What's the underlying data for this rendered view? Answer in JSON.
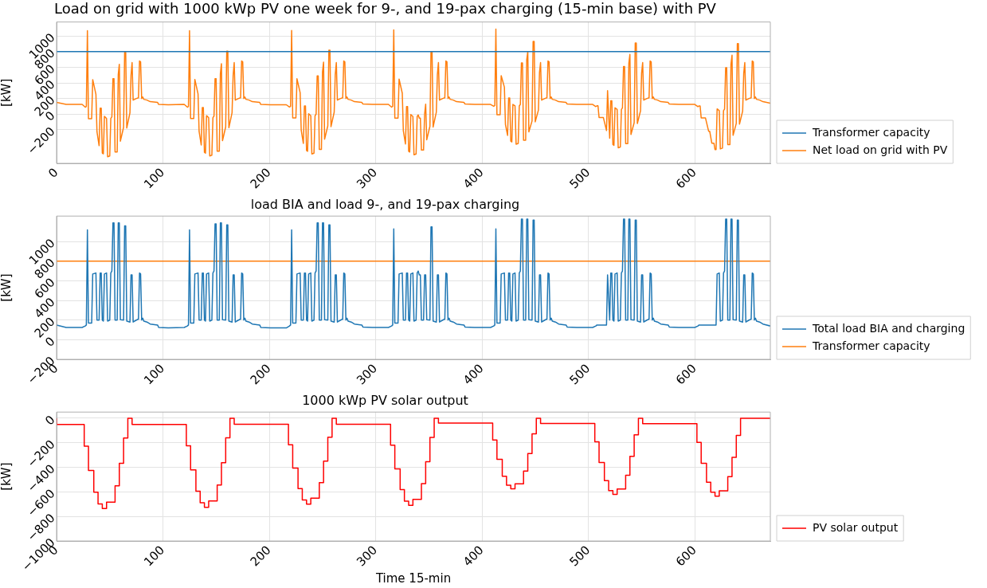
{
  "chart_data": [
    {
      "type": "line",
      "title": "Load on grid with 1000 kWp PV one week for 9-, and 19-pax charging (15-min base) with PV",
      "ylabel": "[kW]",
      "xlim": [
        0,
        671
      ],
      "xticks": [
        0,
        100,
        200,
        300,
        400,
        500,
        600
      ],
      "ylim": [
        -630,
        1180
      ],
      "yticks": [
        {
          "value": -200,
          "label": "−200"
        },
        0,
        200,
        400,
        600,
        800,
        1000
      ],
      "grid": true,
      "legend": "bottom right",
      "series": [
        {
          "name": "Transformer capacity",
          "color": "#1f77b4",
          "x": [
            0,
            671
          ],
          "values": [
            800,
            800
          ]
        },
        {
          "name": "Net load on grid with PV",
          "color": "#ff7f0e",
          "x": [
            0,
            9,
            24,
            27,
            28,
            29,
            30,
            33,
            34,
            37,
            38,
            40,
            41,
            42,
            43,
            44,
            45,
            47,
            48,
            50,
            51,
            52,
            53,
            54,
            55,
            57,
            58,
            59,
            60,
            63,
            64,
            65,
            66,
            69,
            70,
            71,
            72,
            75,
            77,
            78,
            79,
            80,
            81,
            82,
            85,
            88,
            95,
            96,
            105,
            120,
            123,
            124,
            125,
            126,
            129,
            130,
            133,
            134,
            136,
            137,
            138,
            139,
            140,
            141,
            143,
            144,
            146,
            147,
            148,
            149,
            150,
            151,
            153,
            154,
            155,
            156,
            159,
            160,
            161,
            162,
            165,
            166,
            167,
            168,
            171,
            173,
            174,
            175,
            176,
            177,
            178,
            181,
            184,
            191,
            192,
            201,
            216,
            219,
            220,
            221,
            222,
            225,
            226,
            229,
            230,
            232,
            233,
            234,
            235,
            236,
            237,
            239,
            240,
            242,
            243,
            244,
            245,
            246,
            247,
            249,
            250,
            251,
            252,
            255,
            256,
            257,
            258,
            261,
            262,
            263,
            264,
            267,
            269,
            270,
            271,
            272,
            273,
            274,
            277,
            280,
            287,
            288,
            297,
            312,
            315,
            316,
            317,
            318,
            321,
            322,
            325,
            326,
            328,
            329,
            330,
            331,
            332,
            333,
            335,
            336,
            338,
            339,
            340,
            341,
            342,
            343,
            345,
            346,
            347,
            348,
            351,
            352,
            353,
            354,
            357,
            358,
            359,
            360,
            363,
            365,
            366,
            367,
            368,
            369,
            370,
            373,
            376,
            383,
            384,
            393,
            408,
            411,
            412,
            413,
            414,
            417,
            418,
            421,
            422,
            424,
            425,
            426,
            427,
            428,
            429,
            431,
            432,
            434,
            435,
            436,
            437,
            438,
            439,
            441,
            442,
            443,
            444,
            447,
            448,
            449,
            450,
            453,
            454,
            455,
            456,
            459,
            461,
            462,
            463,
            464,
            465,
            466,
            469,
            472,
            479,
            480,
            489,
            504,
            507,
            508,
            509,
            510,
            513,
            514,
            517,
            518,
            520,
            521,
            522,
            523,
            524,
            525,
            527,
            528,
            530,
            531,
            532,
            533,
            534,
            535,
            537,
            538,
            539,
            540,
            543,
            544,
            545,
            546,
            549,
            550,
            551,
            552,
            555,
            557,
            558,
            559,
            560,
            561,
            562,
            565,
            568,
            575,
            576,
            585,
            600,
            603,
            604,
            605,
            606,
            609,
            610,
            613,
            614,
            616,
            617,
            618,
            619,
            620,
            621,
            623,
            624,
            626,
            627,
            628,
            629,
            630,
            631,
            633,
            634,
            635,
            636,
            639,
            640,
            641,
            642,
            645,
            646,
            647,
            648,
            651,
            653,
            654,
            655,
            656,
            657,
            658,
            661,
            664,
            671
          ],
          "values": [
            150,
            125,
            125,
            89,
            99,
            1069,
            -58,
            -58,
            442,
            254,
            -226,
            -403,
            77,
            77,
            -498,
            -508,
            -28,
            -55,
            -545,
            -535,
            -55,
            -35,
            455,
            455,
            -484,
            -484,
            506,
            639,
            -346,
            -168,
            792,
            792,
            -178,
            18,
            498,
            660,
            180,
            200,
            210,
            680,
            670,
            200,
            220,
            190,
            180,
            160,
            150,
            125,
            120,
            125,
            89,
            99,
            1069,
            -55,
            -55,
            445,
            259,
            -221,
            -395,
            85,
            85,
            -489,
            -499,
            -19,
            -45,
            -535,
            -525,
            -45,
            -25,
            455,
            455,
            -474,
            -474,
            516,
            646,
            -339,
            -163,
            807,
            807,
            -173,
            20,
            500,
            660,
            180,
            200,
            210,
            680,
            670,
            200,
            220,
            190,
            180,
            160,
            150,
            125,
            120,
            120,
            91,
            101,
            1071,
            -47,
            -47,
            453,
            274,
            -206,
            -374,
            106,
            106,
            -465,
            -475,
            5,
            -20,
            -510,
            -500,
            -20,
            0,
            490,
            490,
            -451,
            -451,
            539,
            665,
            -320,
            -150,
            820,
            820,
            -160,
            26,
            506,
            660,
            180,
            200,
            210,
            680,
            670,
            200,
            220,
            190,
            180,
            160,
            150,
            130,
            125,
            125,
            90,
            100,
            1080,
            -50,
            -50,
            450,
            268,
            -212,
            -382,
            98,
            98,
            -475,
            -485,
            -5,
            -30,
            -520,
            -510,
            -30,
            -10,
            -50,
            -50,
            -460,
            -460,
            0,
            127,
            -328,
            -155,
            795,
            795,
            -165,
            24,
            504,
            660,
            180,
            200,
            210,
            680,
            670,
            200,
            220,
            190,
            180,
            160,
            150,
            130,
            125,
            125,
            100,
            110,
            1090,
            -8,
            -8,
            492,
            346,
            -134,
            -272,
            208,
            208,
            -346,
            -356,
            124,
            105,
            -385,
            -375,
            105,
            125,
            655,
            655,
            -335,
            -335,
            695,
            799,
            -226,
            -88,
            932,
            932,
            -98,
            53,
            533,
            660,
            180,
            200,
            210,
            680,
            670,
            200,
            220,
            190,
            180,
            160,
            150,
            130,
            125,
            125,
            97,
            107,
            107,
            -42,
            -42,
            -42,
            -210,
            300,
            -308,
            172,
            172,
            -389,
            -399,
            81,
            60,
            -430,
            -420,
            60,
            80,
            610,
            610,
            -377,
            -377,
            653,
            765,
            -260,
            -110,
            910,
            910,
            -120,
            44,
            524,
            660,
            180,
            200,
            210,
            680,
            670,
            200,
            220,
            190,
            180,
            160,
            150,
            130,
            125,
            125,
            96,
            106,
            106,
            -47,
            -47,
            -47,
            -218,
            -218,
            -371,
            -371,
            -371,
            -453,
            -453,
            67,
            45,
            -445,
            -435,
            45,
            65,
            595,
            595,
            -391,
            -391,
            639,
            754,
            -271,
            -118,
            902,
            902,
            -128,
            40,
            520,
            660,
            180,
            200,
            210,
            680,
            670,
            200,
            220,
            190,
            180,
            160,
            140
          ]
        }
      ]
    },
    {
      "type": "line",
      "title": "load BIA and load 9-, and 19-pax charging",
      "ylabel": "[kW]",
      "xlim": [
        0,
        671
      ],
      "xticks": [
        0,
        100,
        200,
        300,
        400,
        500,
        600
      ],
      "ylim": [
        -200,
        1260
      ],
      "yticks": [
        {
          "value": -200,
          "label": "−200"
        },
        0,
        200,
        400,
        600,
        800,
        1000
      ],
      "grid": true,
      "legend": "bottom right",
      "series": [
        {
          "name": "Total load BIA and charging",
          "color": "#1f77b4",
          "x": [
            0,
            9,
            24,
            27,
            28,
            29,
            30,
            33,
            34,
            37,
            38,
            40,
            41,
            42,
            43,
            44,
            45,
            47,
            48,
            50,
            51,
            52,
            53,
            54,
            55,
            57,
            58,
            59,
            60,
            63,
            64,
            65,
            66,
            69,
            70,
            71,
            72,
            75,
            77,
            78,
            79,
            80,
            81,
            82,
            85,
            88,
            95,
            96,
            105,
            120,
            123,
            124,
            125,
            126,
            129,
            130,
            133,
            134,
            136,
            137,
            138,
            139,
            140,
            141,
            143,
            144,
            146,
            147,
            148,
            149,
            150,
            151,
            153,
            154,
            155,
            156,
            159,
            160,
            161,
            162,
            165,
            166,
            167,
            168,
            171,
            173,
            174,
            175,
            176,
            177,
            178,
            181,
            184,
            191,
            192,
            201,
            216,
            219,
            220,
            221,
            222,
            225,
            226,
            229,
            230,
            232,
            233,
            234,
            235,
            236,
            237,
            239,
            240,
            242,
            243,
            244,
            245,
            246,
            247,
            249,
            250,
            251,
            252,
            255,
            256,
            257,
            258,
            261,
            262,
            263,
            264,
            267,
            269,
            270,
            271,
            272,
            273,
            274,
            277,
            280,
            287,
            288,
            297,
            312,
            315,
            316,
            317,
            318,
            321,
            322,
            325,
            326,
            328,
            329,
            330,
            331,
            332,
            333,
            335,
            336,
            338,
            339,
            340,
            341,
            342,
            343,
            345,
            346,
            347,
            348,
            351,
            352,
            353,
            354,
            357,
            358,
            359,
            360,
            363,
            365,
            366,
            367,
            368,
            369,
            370,
            373,
            376,
            383,
            384,
            393,
            408,
            411,
            412,
            413,
            414,
            417,
            418,
            421,
            422,
            424,
            425,
            426,
            427,
            428,
            429,
            431,
            432,
            434,
            435,
            436,
            437,
            438,
            439,
            441,
            442,
            443,
            444,
            447,
            448,
            449,
            450,
            453,
            454,
            455,
            456,
            459,
            461,
            462,
            463,
            464,
            465,
            466,
            469,
            472,
            479,
            480,
            489,
            504,
            507,
            508,
            509,
            510,
            513,
            514,
            517,
            518,
            520,
            521,
            522,
            523,
            524,
            525,
            527,
            528,
            530,
            531,
            532,
            533,
            534,
            535,
            537,
            538,
            539,
            540,
            543,
            544,
            545,
            546,
            549,
            550,
            551,
            552,
            555,
            557,
            558,
            559,
            560,
            561,
            562,
            565,
            568,
            575,
            576,
            585,
            600,
            603,
            604,
            605,
            606,
            609,
            610,
            613,
            614,
            616,
            617,
            618,
            619,
            620,
            621,
            623,
            624,
            626,
            627,
            628,
            629,
            630,
            631,
            633,
            634,
            635,
            636,
            639,
            640,
            641,
            642,
            645,
            646,
            647,
            648,
            651,
            653,
            654,
            655,
            656,
            657,
            658,
            661,
            664,
            671
          ],
          "values": [
            150,
            125,
            125,
            140,
            150,
            1120,
            170,
            170,
            670,
            680,
            200,
            200,
            680,
            680,
            200,
            190,
            670,
            680,
            190,
            200,
            680,
            700,
            1190,
            1190,
            200,
            200,
            1190,
            1190,
            205,
            200,
            1160,
            1160,
            190,
            180,
            660,
            660,
            180,
            200,
            210,
            680,
            670,
            200,
            220,
            190,
            180,
            160,
            150,
            125,
            120,
            125,
            140,
            150,
            1120,
            170,
            170,
            670,
            680,
            200,
            200,
            680,
            680,
            200,
            190,
            670,
            680,
            190,
            200,
            680,
            700,
            1180,
            1180,
            200,
            200,
            1190,
            1190,
            205,
            200,
            1170,
            1170,
            190,
            180,
            660,
            660,
            180,
            200,
            210,
            680,
            670,
            200,
            220,
            190,
            180,
            160,
            150,
            125,
            120,
            120,
            140,
            150,
            1120,
            170,
            170,
            670,
            680,
            200,
            200,
            680,
            680,
            200,
            190,
            670,
            680,
            190,
            200,
            680,
            700,
            1190,
            1190,
            200,
            200,
            1190,
            1190,
            205,
            200,
            1170,
            1170,
            190,
            180,
            660,
            660,
            180,
            200,
            210,
            680,
            670,
            200,
            220,
            190,
            180,
            160,
            150,
            130,
            125,
            125,
            140,
            150,
            1130,
            170,
            170,
            670,
            680,
            200,
            200,
            680,
            680,
            200,
            190,
            670,
            680,
            190,
            200,
            680,
            700,
            660,
            660,
            200,
            200,
            660,
            660,
            205,
            200,
            1150,
            1150,
            190,
            180,
            660,
            660,
            180,
            200,
            210,
            680,
            670,
            200,
            220,
            190,
            180,
            160,
            150,
            130,
            125,
            125,
            140,
            150,
            1130,
            170,
            170,
            670,
            680,
            200,
            200,
            680,
            680,
            200,
            190,
            670,
            680,
            190,
            200,
            680,
            700,
            1230,
            1230,
            200,
            200,
            1230,
            1230,
            205,
            200,
            1220,
            1220,
            190,
            180,
            660,
            660,
            180,
            200,
            210,
            680,
            670,
            200,
            220,
            190,
            180,
            160,
            150,
            130,
            125,
            125,
            140,
            150,
            150,
            150,
            150,
            150,
            150,
            660,
            200,
            680,
            680,
            200,
            190,
            670,
            680,
            190,
            200,
            680,
            700,
            1230,
            1230,
            200,
            200,
            1230,
            1230,
            205,
            200,
            1220,
            1220,
            190,
            180,
            660,
            660,
            180,
            200,
            210,
            680,
            670,
            200,
            220,
            190,
            180,
            160,
            150,
            130,
            125,
            125,
            140,
            150,
            150,
            150,
            150,
            150,
            150,
            150,
            150,
            150,
            150,
            150,
            150,
            670,
            680,
            190,
            200,
            680,
            700,
            1230,
            1230,
            200,
            200,
            1230,
            1230,
            205,
            200,
            1220,
            1220,
            190,
            180,
            660,
            660,
            180,
            200,
            210,
            680,
            670,
            200,
            220,
            190,
            180,
            160,
            140
          ]
        },
        {
          "name": "Transformer capacity",
          "color": "#ff7f0e",
          "x": [
            0,
            671
          ],
          "values": [
            800,
            800
          ]
        }
      ]
    },
    {
      "type": "step",
      "title": "1000 kWp PV solar output",
      "xlabel": "Time 15-min",
      "ylabel": "[kW]",
      "xlim": [
        0,
        671
      ],
      "xticks": [
        0,
        100,
        200,
        300,
        400,
        500,
        600
      ],
      "ylim": [
        -1000,
        50
      ],
      "yticks": [
        {
          "value": -1000,
          "label": "−1000"
        },
        {
          "value": -800,
          "label": "−800"
        },
        {
          "value": -600,
          "label": "−600"
        },
        {
          "value": -400,
          "label": "−400"
        },
        {
          "value": -200,
          "label": "−200"
        },
        0
      ],
      "grid": true,
      "legend": "bottom right",
      "series": [
        {
          "name": "PV solar output",
          "color": "#ff0000",
          "x": [
            0,
            26,
            30,
            35,
            39,
            43,
            47,
            55,
            59,
            63,
            67,
            71,
            122,
            126,
            131,
            135,
            139,
            143,
            151,
            155,
            159,
            163,
            167,
            218,
            222,
            227,
            231,
            235,
            239,
            247,
            251,
            255,
            259,
            263,
            314,
            318,
            323,
            327,
            331,
            335,
            343,
            347,
            351,
            355,
            359,
            410,
            414,
            419,
            423,
            427,
            431,
            439,
            443,
            447,
            451,
            455,
            506,
            510,
            515,
            519,
            523,
            527,
            535,
            539,
            543,
            547,
            551,
            602,
            606,
            611,
            615,
            619,
            623,
            631,
            635,
            639,
            643,
            647,
            671
          ],
          "values": [
            0,
            -51,
            -228,
            -426,
            -603,
            -698,
            -735,
            -684,
            -551,
            -368,
            -162,
            0,
            -51,
            -225,
            -421,
            -595,
            -689,
            -725,
            -674,
            -544,
            -363,
            -160,
            0,
            -49,
            -217,
            -406,
            -574,
            -665,
            -700,
            -651,
            -525,
            -350,
            -154,
            0,
            -50,
            -220,
            -412,
            -582,
            -675,
            -710,
            -660,
            -533,
            -355,
            -156,
            0,
            -40,
            -178,
            -334,
            -472,
            -546,
            -575,
            -535,
            -431,
            -288,
            -127,
            0,
            -43,
            -192,
            -360,
            -508,
            -589,
            -620,
            -577,
            -465,
            -310,
            -136,
            0,
            -44,
            -197,
            -368,
            -521,
            -603,
            -635,
            -591,
            -476,
            -318,
            -140,
            0,
            0
          ]
        }
      ]
    }
  ]
}
